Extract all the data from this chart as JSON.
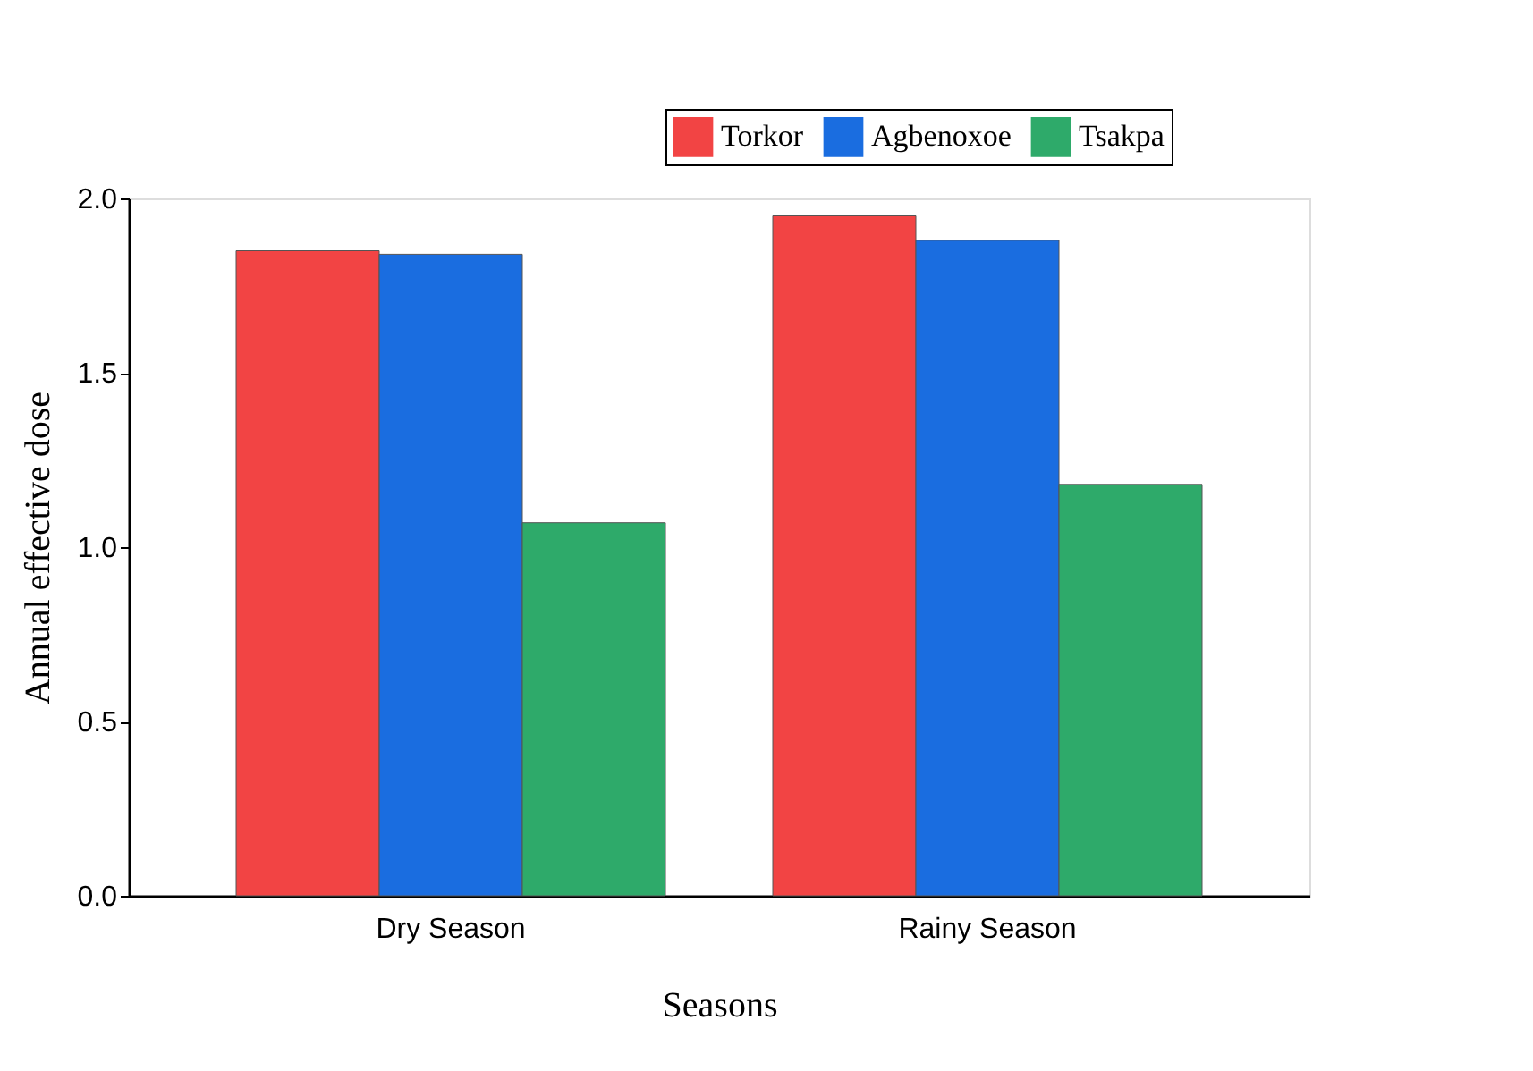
{
  "chart_data": {
    "type": "bar",
    "xlabel": "Seasons",
    "ylabel": "Annual effective dose",
    "categories": [
      "Dry Season",
      "Rainy Season"
    ],
    "series": [
      {
        "name": "Torkor",
        "color": "#f24444",
        "values": [
          1.85,
          1.95
        ]
      },
      {
        "name": "Agbenoxoe",
        "color": "#1a6de0",
        "values": [
          1.84,
          1.88
        ]
      },
      {
        "name": "Tsakpa",
        "color": "#2eaa6a",
        "values": [
          1.07,
          1.18
        ]
      }
    ],
    "ylim": [
      0,
      2.0
    ],
    "yticks": [
      {
        "value": 0,
        "label": "0.0"
      },
      0.5,
      {
        "value": 1,
        "label": "1.0"
      },
      1.5,
      {
        "value": 2,
        "label": "2.0"
      }
    ],
    "grid": false,
    "legend": "top right"
  }
}
